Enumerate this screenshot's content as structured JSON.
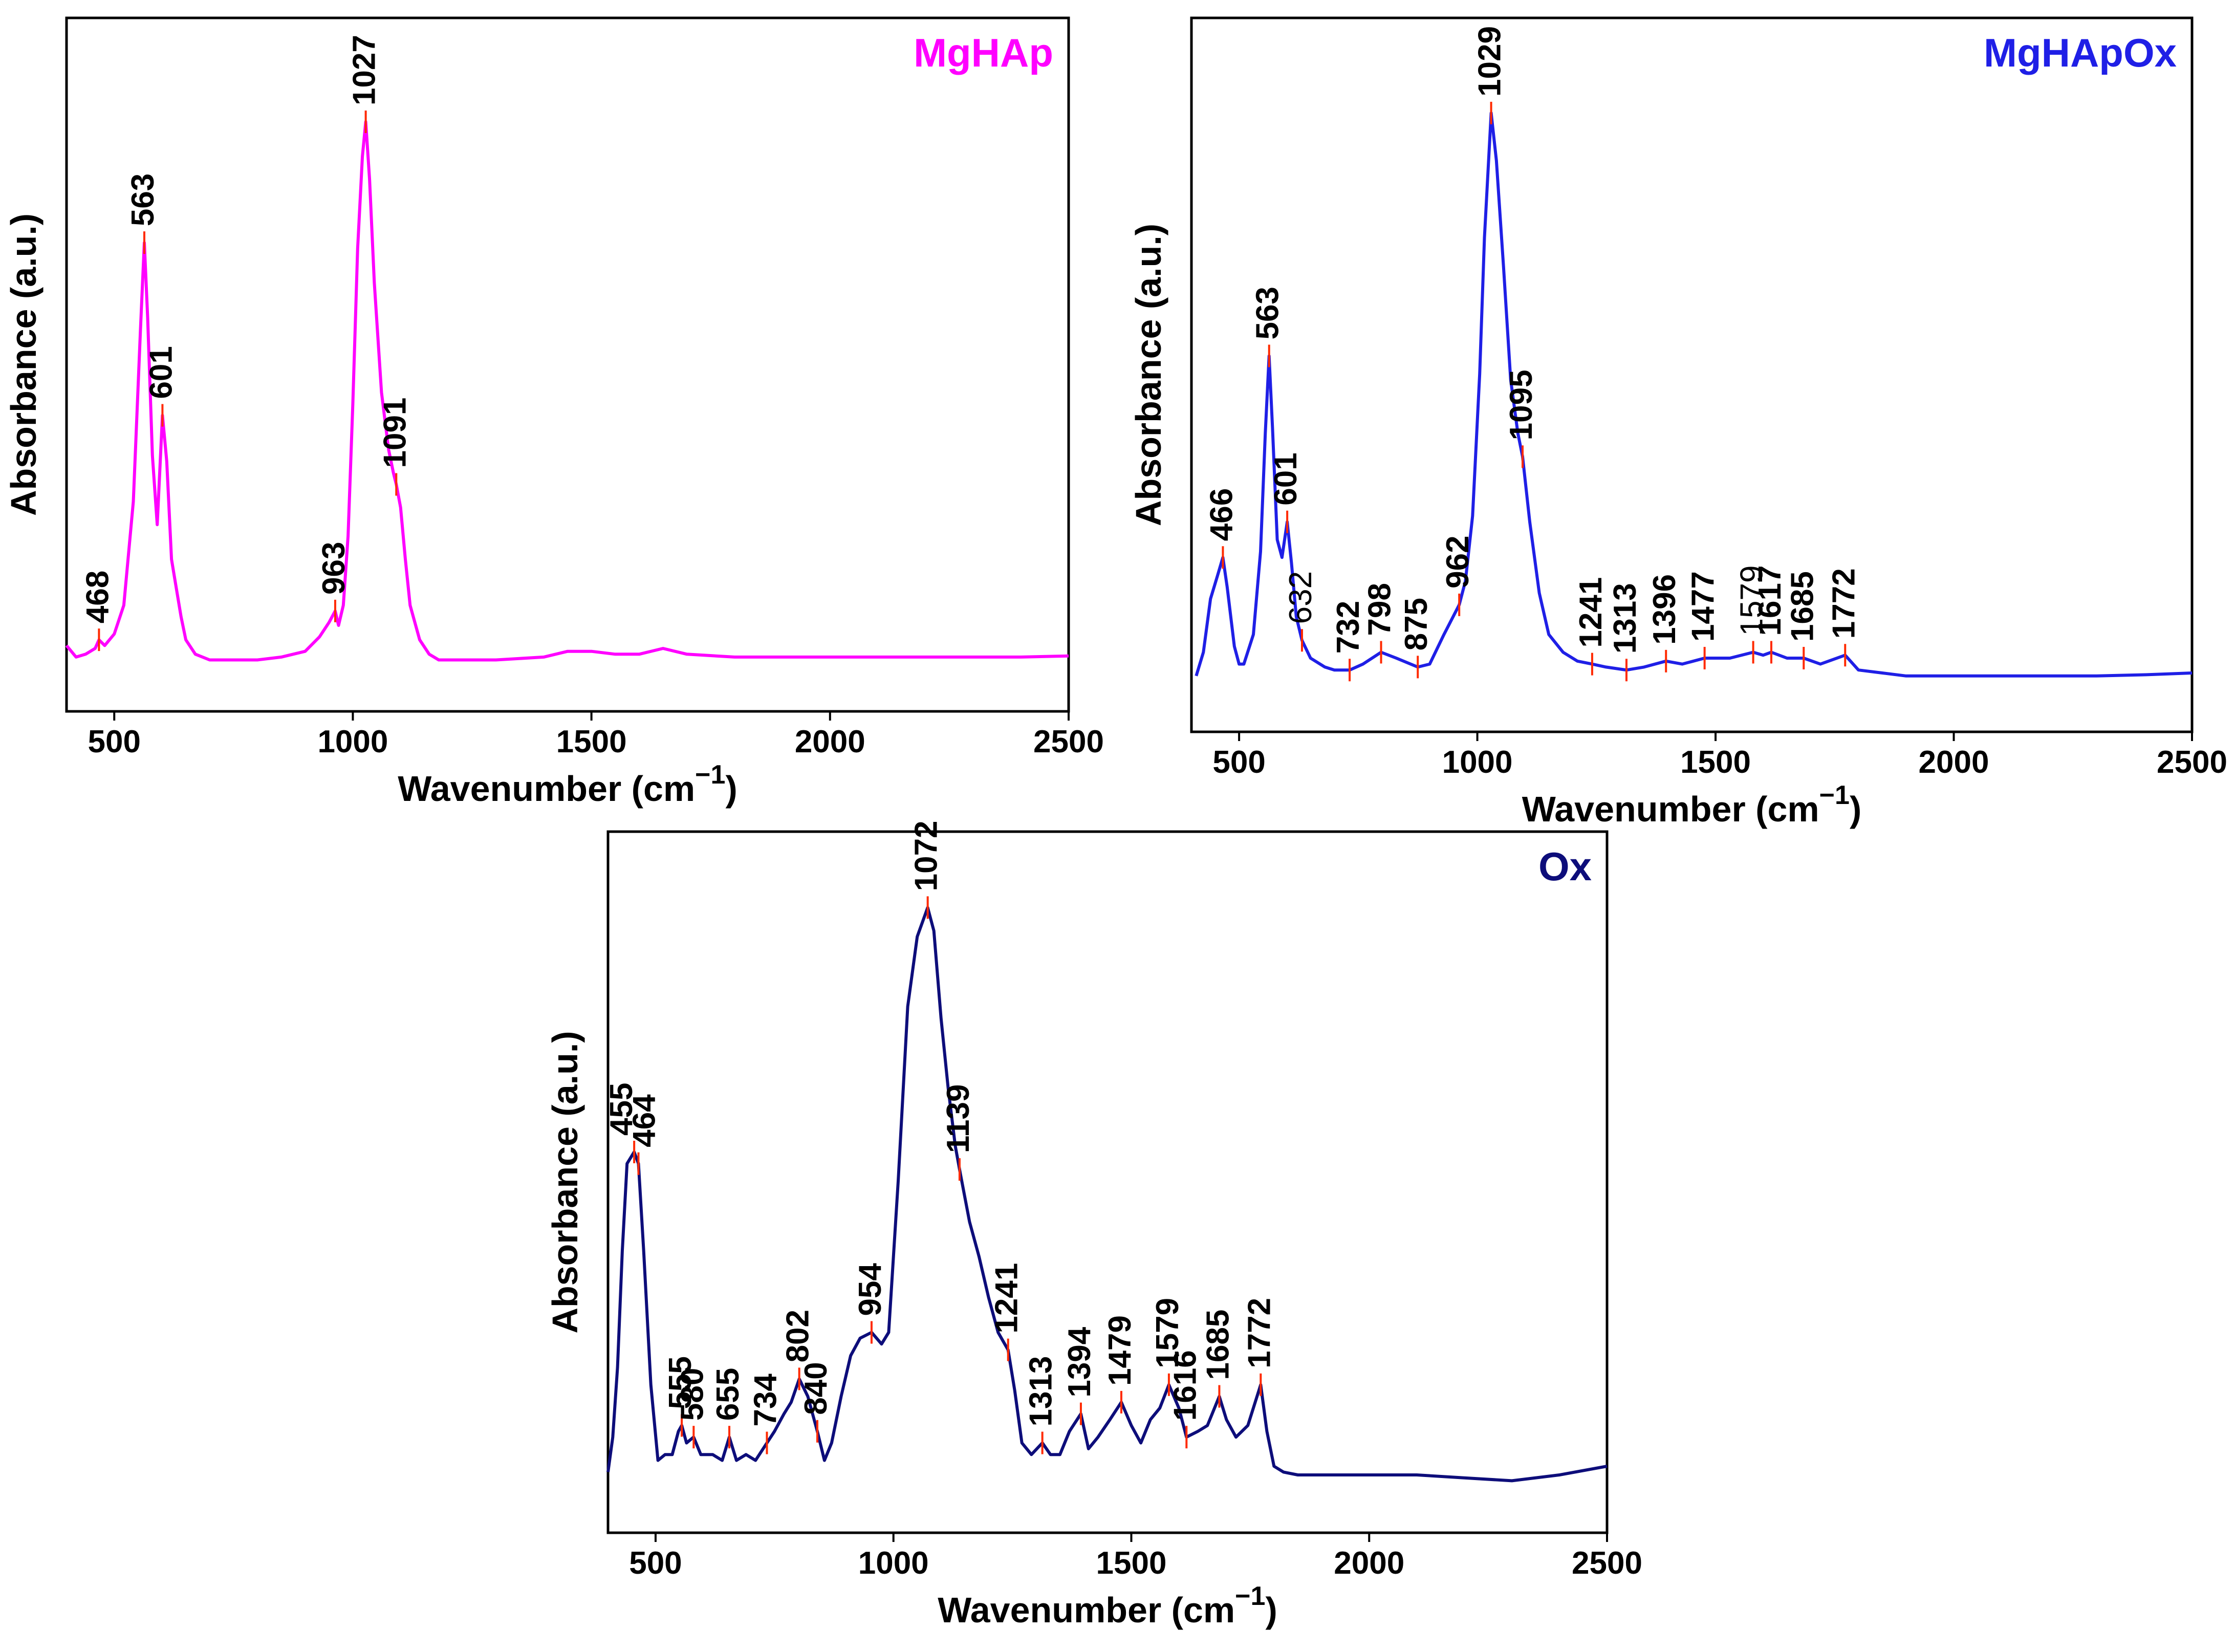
{
  "colors": {
    "MgHAp": "#ff00ff",
    "MgHApOx": "#1f1fe6",
    "Ox": "#0d0d7a",
    "peak_marker": "#ff2a00"
  },
  "chart_data": [
    {
      "type": "line",
      "title": "MgHAp",
      "xlabel": "Wavenumber",
      "xlabel_unit": "(cm",
      "xlabel_exp": "−1",
      "xlabel_close": ")",
      "ylabel": "Absorbance (a.u.)",
      "xlim": [
        400,
        2500
      ],
      "ylim": [
        0,
        100
      ],
      "xticks": [
        500,
        1000,
        1500,
        2000,
        2500
      ],
      "series": [
        {
          "name": "MgHAp",
          "x": [
            400,
            420,
            440,
            460,
            468,
            480,
            500,
            520,
            540,
            555,
            563,
            570,
            580,
            590,
            601,
            610,
            620,
            630,
            640,
            650,
            670,
            700,
            750,
            800,
            850,
            900,
            930,
            950,
            963,
            970,
            980,
            990,
            1000,
            1010,
            1020,
            1027,
            1035,
            1045,
            1060,
            1075,
            1085,
            1091,
            1100,
            1110,
            1120,
            1140,
            1160,
            1180,
            1200,
            1300,
            1400,
            1450,
            1500,
            1550,
            1600,
            1650,
            1700,
            1800,
            1900,
            2000,
            2100,
            2200,
            2300,
            2400,
            2500
          ],
          "y": [
            3,
            1,
            1.5,
            2.5,
            4,
            3,
            5,
            10,
            28,
            58,
            73,
            60,
            36,
            24,
            43,
            35,
            18,
            13,
            8,
            4,
            1.5,
            0.5,
            0.5,
            0.5,
            1,
            2,
            4.5,
            7,
            9,
            6.5,
            10,
            22,
            45,
            72,
            88,
            94,
            84,
            66,
            47,
            37,
            33,
            31,
            27,
            18,
            10,
            4,
            1.5,
            0.5,
            0.5,
            0.5,
            1,
            2,
            2,
            1.5,
            1.5,
            2.5,
            1.5,
            1,
            1,
            1,
            1,
            1,
            1,
            1,
            1.2
          ]
        }
      ],
      "peaks": [
        {
          "x": 468,
          "y": 4,
          "label": "468",
          "bold": true
        },
        {
          "x": 563,
          "y": 73,
          "label": "563",
          "bold": true
        },
        {
          "x": 601,
          "y": 43,
          "label": "601",
          "bold": true
        },
        {
          "x": 963,
          "y": 9,
          "label": "963",
          "bold": true
        },
        {
          "x": 1027,
          "y": 94,
          "label": "1027",
          "bold": true
        },
        {
          "x": 1091,
          "y": 31,
          "label": "1091",
          "bold": true
        }
      ]
    },
    {
      "type": "line",
      "title": "MgHApOx",
      "xlabel": "Wavenumber",
      "xlabel_unit": "(cm",
      "xlabel_exp": "−1",
      "xlabel_close": ")",
      "ylabel": "Absorbance (a.u.)",
      "xlim": [
        400,
        2500
      ],
      "ylim": [
        0,
        100
      ],
      "xticks": [
        500,
        1000,
        1500,
        2000,
        2500
      ],
      "series": [
        {
          "name": "MgHApOx",
          "x": [
            410,
            425,
            440,
            455,
            466,
            475,
            490,
            500,
            510,
            530,
            545,
            555,
            563,
            570,
            580,
            590,
            601,
            610,
            620,
            632,
            650,
            680,
            700,
            732,
            760,
            798,
            830,
            875,
            900,
            930,
            962,
            975,
            990,
            1005,
            1015,
            1029,
            1040,
            1055,
            1070,
            1085,
            1095,
            1110,
            1130,
            1150,
            1180,
            1210,
            1241,
            1270,
            1313,
            1350,
            1396,
            1430,
            1477,
            1530,
            1579,
            1600,
            1617,
            1650,
            1685,
            1720,
            1772,
            1800,
            1850,
            1900,
            2000,
            2100,
            2200,
            2300,
            2400,
            2500
          ],
          "y": [
            1,
            5,
            14,
            18,
            21,
            16,
            6,
            3,
            3,
            8,
            22,
            42,
            55,
            43,
            24,
            21,
            27,
            20,
            11,
            7,
            4,
            2.5,
            2,
            2,
            3,
            5,
            4,
            2.5,
            3,
            8,
            13,
            17,
            28,
            52,
            75,
            96,
            88,
            70,
            51,
            42,
            38,
            27,
            15,
            8,
            5,
            3.5,
            3,
            2.5,
            2,
            2.5,
            3.5,
            3,
            4,
            4,
            5,
            4.5,
            5,
            4,
            4,
            3,
            4.5,
            2,
            1.5,
            1,
            1,
            1,
            1,
            1,
            1.2,
            1.5
          ]
        }
      ],
      "peaks": [
        {
          "x": 466,
          "y": 21,
          "label": "466",
          "bold": true
        },
        {
          "x": 563,
          "y": 55,
          "label": "563",
          "bold": true
        },
        {
          "x": 601,
          "y": 27,
          "label": "601",
          "bold": true
        },
        {
          "x": 632,
          "y": 7,
          "label": "632",
          "bold": false
        },
        {
          "x": 732,
          "y": 2,
          "label": "732",
          "bold": true
        },
        {
          "x": 798,
          "y": 5,
          "label": "798",
          "bold": true
        },
        {
          "x": 875,
          "y": 2.5,
          "label": "875",
          "bold": true
        },
        {
          "x": 962,
          "y": 13,
          "label": "962",
          "bold": true
        },
        {
          "x": 1029,
          "y": 96,
          "label": "1029",
          "bold": true
        },
        {
          "x": 1095,
          "y": 38,
          "label": "1095",
          "bold": true
        },
        {
          "x": 1241,
          "y": 3,
          "label": "1241",
          "bold": true
        },
        {
          "x": 1313,
          "y": 2,
          "label": "1313",
          "bold": true
        },
        {
          "x": 1396,
          "y": 3.5,
          "label": "1396",
          "bold": true
        },
        {
          "x": 1477,
          "y": 4,
          "label": "1477",
          "bold": true
        },
        {
          "x": 1579,
          "y": 5,
          "label": "1579",
          "bold": false
        },
        {
          "x": 1617,
          "y": 5,
          "label": "1617",
          "bold": true
        },
        {
          "x": 1685,
          "y": 4,
          "label": "1685",
          "bold": true
        },
        {
          "x": 1772,
          "y": 4.5,
          "label": "1772",
          "bold": true
        }
      ]
    },
    {
      "type": "line",
      "title": "Ox",
      "xlabel": "Wavenumber",
      "xlabel_unit": "(cm",
      "xlabel_exp": "−1",
      "xlabel_close": ")",
      "ylabel": "Absorbance (a.u.)",
      "xlim": [
        400,
        2500
      ],
      "ylim": [
        0,
        100
      ],
      "xticks": [
        500,
        1000,
        1500,
        2000,
        2500
      ],
      "series": [
        {
          "name": "Ox",
          "x": [
            400,
            410,
            420,
            430,
            440,
            455,
            464,
            475,
            490,
            505,
            520,
            535,
            548,
            555,
            565,
            580,
            595,
            620,
            640,
            655,
            670,
            690,
            710,
            734,
            750,
            770,
            785,
            802,
            820,
            840,
            855,
            870,
            890,
            910,
            930,
            954,
            975,
            990,
            1010,
            1030,
            1050,
            1072,
            1085,
            1100,
            1115,
            1130,
            1139,
            1160,
            1180,
            1200,
            1220,
            1241,
            1255,
            1270,
            1290,
            1313,
            1330,
            1350,
            1370,
            1394,
            1410,
            1430,
            1455,
            1479,
            1500,
            1520,
            1540,
            1560,
            1579,
            1600,
            1616,
            1640,
            1660,
            1685,
            1700,
            1720,
            1745,
            1772,
            1785,
            1800,
            1820,
            1850,
            1900,
            2000,
            2100,
            2200,
            2300,
            2400,
            2500
          ],
          "y": [
            2,
            8,
            20,
            40,
            55,
            57,
            55,
            40,
            17,
            4,
            5,
            5,
            9,
            10,
            7,
            8,
            5,
            5,
            4,
            8,
            4,
            5,
            4,
            7,
            9,
            12,
            14,
            18,
            15,
            9,
            4,
            7,
            15,
            22,
            25,
            26,
            24,
            26,
            52,
            82,
            94,
            99,
            95,
            80,
            68,
            58,
            54,
            45,
            39,
            32,
            26,
            23,
            16,
            7,
            5,
            7,
            5,
            5,
            9,
            12,
            6,
            8,
            11,
            14,
            10,
            7,
            11,
            13,
            17,
            13,
            8,
            9,
            10,
            15,
            11,
            8,
            10,
            17,
            9,
            3,
            2,
            1.5,
            1.5,
            1.5,
            1.5,
            1,
            0.5,
            1.5,
            3
          ]
        }
      ],
      "peaks": [
        {
          "x": 455,
          "y": 57,
          "label": "455",
          "bold": true
        },
        {
          "x": 464,
          "y": 55,
          "label": "464",
          "bold": true
        },
        {
          "x": 555,
          "y": 10,
          "label": "555",
          "bold": true
        },
        {
          "x": 580,
          "y": 8,
          "label": "580",
          "bold": true
        },
        {
          "x": 655,
          "y": 8,
          "label": "655",
          "bold": true
        },
        {
          "x": 734,
          "y": 7,
          "label": "734",
          "bold": true
        },
        {
          "x": 802,
          "y": 18,
          "label": "802",
          "bold": true
        },
        {
          "x": 840,
          "y": 9,
          "label": "840",
          "bold": true
        },
        {
          "x": 954,
          "y": 26,
          "label": "954",
          "bold": true
        },
        {
          "x": 1072,
          "y": 99,
          "label": "1072",
          "bold": true
        },
        {
          "x": 1139,
          "y": 54,
          "label": "1139",
          "bold": true
        },
        {
          "x": 1241,
          "y": 23,
          "label": "1241",
          "bold": true
        },
        {
          "x": 1313,
          "y": 7,
          "label": "1313",
          "bold": true
        },
        {
          "x": 1394,
          "y": 12,
          "label": "1394",
          "bold": true
        },
        {
          "x": 1479,
          "y": 14,
          "label": "1479",
          "bold": true
        },
        {
          "x": 1579,
          "y": 17,
          "label": "1579",
          "bold": true
        },
        {
          "x": 1616,
          "y": 8,
          "label": "1616",
          "bold": true
        },
        {
          "x": 1685,
          "y": 15,
          "label": "1685",
          "bold": true
        },
        {
          "x": 1772,
          "y": 17,
          "label": "1772",
          "bold": true
        }
      ]
    }
  ]
}
